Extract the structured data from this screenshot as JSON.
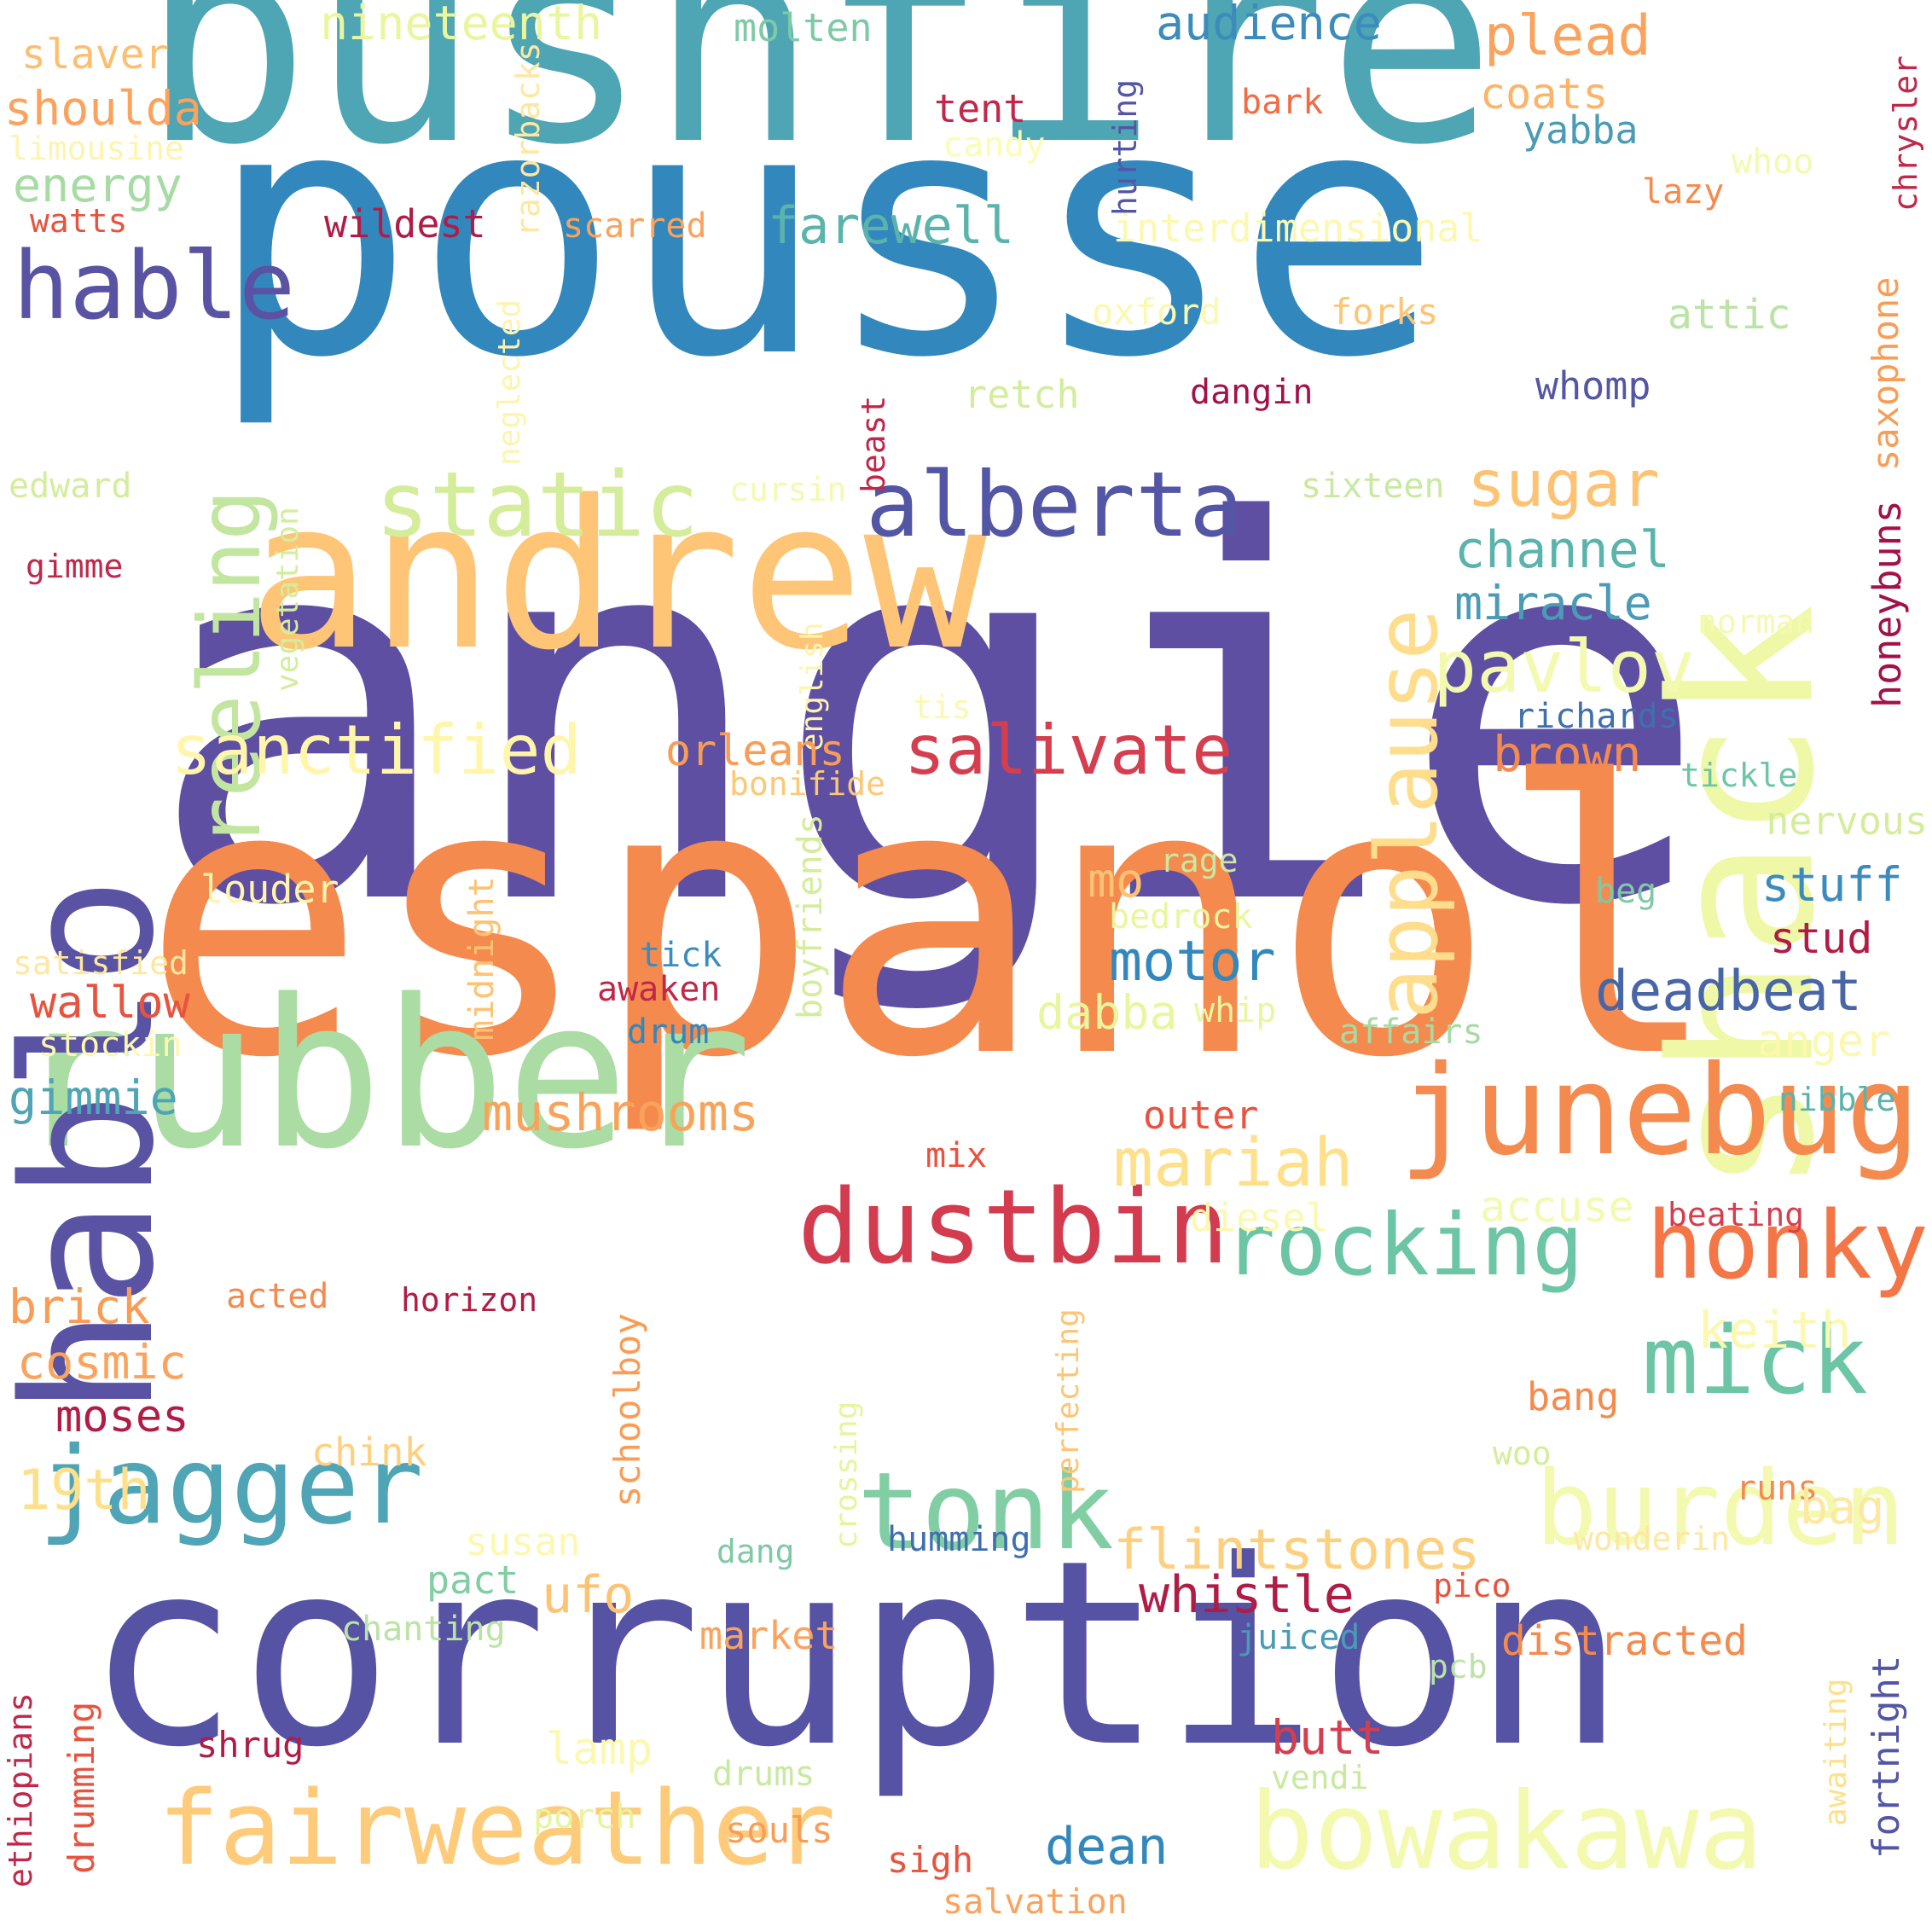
{
  "words": [
    {
      "text": "angie",
      "color": "#5e4fa2"
    },
    {
      "text": "pousse",
      "color": "#3288bd"
    },
    {
      "text": "bushfire",
      "color": "#4ea5b3"
    },
    {
      "text": "espanol",
      "color": "#f58a4e"
    },
    {
      "text": "corruption",
      "color": "#5652a4"
    },
    {
      "text": "andrew",
      "color": "#fdc575"
    },
    {
      "text": "rubber",
      "color": "#abdca3"
    },
    {
      "text": "shack",
      "color": "#eff8a6"
    },
    {
      "text": "hablo",
      "color": "#5a53a4"
    },
    {
      "text": "junebug",
      "color": "#f58a4e"
    },
    {
      "text": "dustbin",
      "color": "#d33c4e"
    },
    {
      "text": "rocking",
      "color": "#6cc5a5"
    },
    {
      "text": "honky",
      "color": "#f47545"
    },
    {
      "text": "mick",
      "color": "#6cc5a5"
    },
    {
      "text": "tonk",
      "color": "#81cea4"
    },
    {
      "text": "jagger",
      "color": "#4fa4b5"
    },
    {
      "text": "burden",
      "color": "#f3fab0"
    },
    {
      "text": "fairweather",
      "color": "#fecb7a"
    },
    {
      "text": "bowakawa",
      "color": "#f3fab0"
    },
    {
      "text": "alberta",
      "color": "#5356a4"
    },
    {
      "text": "static",
      "color": "#d4ed9b"
    },
    {
      "text": "reeling",
      "color": "#c2e69f"
    },
    {
      "text": "applause",
      "color": "#fedd8c"
    },
    {
      "text": "hable",
      "color": "#5a53a4"
    },
    {
      "text": "sanctified",
      "color": "#fff6ac"
    },
    {
      "text": "salivate",
      "color": "#d53e4f"
    },
    {
      "text": "pavlov",
      "color": "#f3fab0"
    },
    {
      "text": "sugar",
      "color": "#fdc272"
    },
    {
      "text": "channel",
      "color": "#5ab4ac"
    },
    {
      "text": "miracle",
      "color": "#4a9bb5"
    },
    {
      "text": "mariah",
      "color": "#fee08b"
    },
    {
      "text": "flintstones",
      "color": "#fdd080"
    },
    {
      "text": "whistle",
      "color": "#b01c45"
    },
    {
      "text": "deadbeat",
      "color": "#4865a8"
    },
    {
      "text": "motor",
      "color": "#3288bd"
    },
    {
      "text": "mushrooms",
      "color": "#f9a35a"
    },
    {
      "text": "farewell",
      "color": "#5ab4ac"
    },
    {
      "text": "audience",
      "color": "#3b8cbc"
    },
    {
      "text": "plead",
      "color": "#fba25d"
    },
    {
      "text": "coats",
      "color": "#fcb468"
    },
    {
      "text": "yabba",
      "color": "#4a9bb5"
    },
    {
      "text": "nineteenth",
      "color": "#eaf69e"
    },
    {
      "text": "molten",
      "color": "#7fc9a6"
    },
    {
      "text": "tent",
      "color": "#c1274a"
    },
    {
      "text": "bark",
      "color": "#f36b42"
    },
    {
      "text": "whoo",
      "color": "#f3fab0"
    },
    {
      "text": "lazy",
      "color": "#f58a4e"
    },
    {
      "text": "chrysler",
      "color": "#c1274a"
    },
    {
      "text": "candy",
      "color": "#fbfcb5"
    },
    {
      "text": "slaver",
      "color": "#fdbf6f"
    },
    {
      "text": "shoulda",
      "color": "#fba25d"
    },
    {
      "text": "limousine",
      "color": "#fdf4ae"
    },
    {
      "text": "energy",
      "color": "#a7dba4"
    },
    {
      "text": "watts",
      "color": "#e6543f"
    },
    {
      "text": "wildest",
      "color": "#b01c45"
    },
    {
      "text": "scarred",
      "color": "#fba25d"
    },
    {
      "text": "interdimensional",
      "color": "#fbf8b0"
    },
    {
      "text": "razorbacks",
      "color": "#fee7a0"
    },
    {
      "text": "hurting",
      "color": "#5356a4"
    },
    {
      "text": "oxford",
      "color": "#fbf8b0"
    },
    {
      "text": "forks",
      "color": "#fdc575"
    },
    {
      "text": "attic",
      "color": "#bbe3a5"
    },
    {
      "text": "saxophone",
      "color": "#f99d56"
    },
    {
      "text": "whomp",
      "color": "#5356a4"
    },
    {
      "text": "dangin",
      "color": "#a3114a"
    },
    {
      "text": "retch",
      "color": "#d2ed9c"
    },
    {
      "text": "beast",
      "color": "#c1274a"
    },
    {
      "text": "neglected",
      "color": "#fdf4ae"
    },
    {
      "text": "sixteen",
      "color": "#c8e9a0"
    },
    {
      "text": "cursin",
      "color": "#f3fab0"
    },
    {
      "text": "edward",
      "color": "#d4ed9b"
    },
    {
      "text": "gimme",
      "color": "#c1274a"
    },
    {
      "text": "vegetation",
      "color": "#d4ed9b"
    },
    {
      "text": "english",
      "color": "#fdf4ae"
    },
    {
      "text": "tis",
      "color": "#fbf8b0"
    },
    {
      "text": "honeybuns",
      "color": "#a3114a"
    },
    {
      "text": "norman",
      "color": "#f3fab0"
    },
    {
      "text": "richards",
      "color": "#3f6fad"
    },
    {
      "text": "tickle",
      "color": "#6cc5a5"
    },
    {
      "text": "nervous",
      "color": "#d4ed9b"
    },
    {
      "text": "orleans",
      "color": "#f99d56"
    },
    {
      "text": "bonifide",
      "color": "#fcc875"
    },
    {
      "text": "brown",
      "color": "#f58a4e"
    },
    {
      "text": "stuff",
      "color": "#3b8cbc"
    },
    {
      "text": "stud",
      "color": "#b01c45"
    },
    {
      "text": "beg",
      "color": "#7fc9a6"
    },
    {
      "text": "mo",
      "color": "#fdc272"
    },
    {
      "text": "rage",
      "color": "#c8e9a0"
    },
    {
      "text": "bedrock",
      "color": "#eaf69e"
    },
    {
      "text": "louder",
      "color": "#fff6ac"
    },
    {
      "text": "midnight",
      "color": "#fdc272"
    },
    {
      "text": "boyfriends",
      "color": "#d4ed9b"
    },
    {
      "text": "dabba",
      "color": "#eaf69e"
    },
    {
      "text": "whip",
      "color": "#eaf69e"
    },
    {
      "text": "affairs",
      "color": "#a7dba4"
    },
    {
      "text": "anger",
      "color": "#fbf8b0"
    },
    {
      "text": "nibble",
      "color": "#5ab4ac"
    },
    {
      "text": "satisfied",
      "color": "#fee7a0"
    },
    {
      "text": "wallow",
      "color": "#e8523f"
    },
    {
      "text": "stockin",
      "color": "#fbf8b0"
    },
    {
      "text": "tick",
      "color": "#3b8cbc"
    },
    {
      "text": "awaken",
      "color": "#c1274a"
    },
    {
      "text": "drum",
      "color": "#3288bd"
    },
    {
      "text": "gimmie",
      "color": "#4fa4b5"
    },
    {
      "text": "outer",
      "color": "#e8523f"
    },
    {
      "text": "mix",
      "color": "#e8523f"
    },
    {
      "text": "diesel",
      "color": "#fbf8b0"
    },
    {
      "text": "accuse",
      "color": "#f3fab0"
    },
    {
      "text": "beating",
      "color": "#d53e4f"
    },
    {
      "text": "keith",
      "color": "#fbf8b0"
    },
    {
      "text": "brick",
      "color": "#f99d56"
    },
    {
      "text": "acted",
      "color": "#f58a4e"
    },
    {
      "text": "horizon",
      "color": "#b01c45"
    },
    {
      "text": "cosmic",
      "color": "#fba25d"
    },
    {
      "text": "moses",
      "color": "#b01c45"
    },
    {
      "text": "chink",
      "color": "#fdd080"
    },
    {
      "text": "19th",
      "color": "#fee08b"
    },
    {
      "text": "schoolboy",
      "color": "#f99d56"
    },
    {
      "text": "perfecting",
      "color": "#fdc575"
    },
    {
      "text": "crossing",
      "color": "#e6f59d"
    },
    {
      "text": "bang",
      "color": "#f58a4e"
    },
    {
      "text": "woo",
      "color": "#d4ed9b"
    },
    {
      "text": "runs",
      "color": "#f58a4e"
    },
    {
      "text": "bag",
      "color": "#fee7a0"
    },
    {
      "text": "wonderin",
      "color": "#fee7a0"
    },
    {
      "text": "humming",
      "color": "#3f6fad"
    },
    {
      "text": "susan",
      "color": "#fbf8b0"
    },
    {
      "text": "dang",
      "color": "#7fc9a6"
    },
    {
      "text": "pact",
      "color": "#81cea4"
    },
    {
      "text": "ufo",
      "color": "#fdc272"
    },
    {
      "text": "chanting",
      "color": "#bbe3a5"
    },
    {
      "text": "market",
      "color": "#fba25d"
    },
    {
      "text": "juiced",
      "color": "#4a9bb5"
    },
    {
      "text": "pico",
      "color": "#e6543f"
    },
    {
      "text": "distracted",
      "color": "#f58a4e"
    },
    {
      "text": "pcb",
      "color": "#bbe3a5"
    },
    {
      "text": "awaiting",
      "color": "#fee08b"
    },
    {
      "text": "fortnight",
      "color": "#5356a4"
    },
    {
      "text": "drumming",
      "color": "#e6543f"
    },
    {
      "text": "ethiopians",
      "color": "#c1274a"
    },
    {
      "text": "shrug",
      "color": "#b01c45"
    },
    {
      "text": "lamp",
      "color": "#fbf8b0"
    },
    {
      "text": "drums",
      "color": "#c8e9a0"
    },
    {
      "text": "butt",
      "color": "#d53e4f"
    },
    {
      "text": "vendi",
      "color": "#c8e9a0"
    },
    {
      "text": "porch",
      "color": "#e6f59d"
    },
    {
      "text": "souls",
      "color": "#f99d56"
    },
    {
      "text": "sigh",
      "color": "#e6543f"
    },
    {
      "text": "dean",
      "color": "#3288bd"
    },
    {
      "text": "salvation",
      "color": "#fba25d"
    }
  ]
}
